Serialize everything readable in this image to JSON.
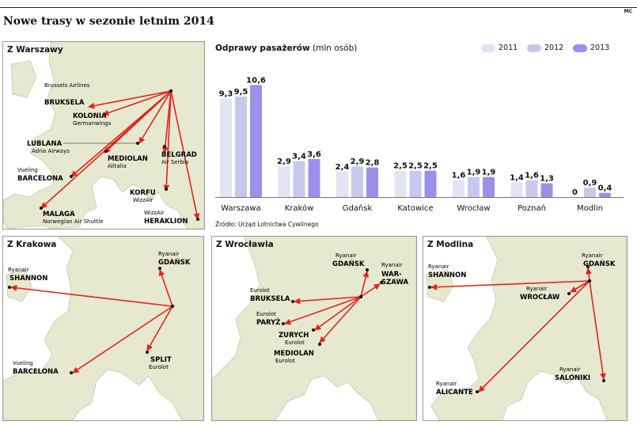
{
  "header": {
    "title": "Nowe trasy w sezonie letnim 2014",
    "corner": "MC"
  },
  "colors": {
    "y2011": "#e3e3f4",
    "y2012": "#c8c8ef",
    "y2013": "#9b8fe8",
    "route": "#e2231a",
    "land": "#e6e8cf",
    "sea": "#ffffff"
  },
  "chart_data": {
    "type": "bar",
    "title": "Odprawy pasażerów",
    "unit": "(mln osób)",
    "categories": [
      "Warszawa",
      "Kraków",
      "Gdańsk",
      "Katowice",
      "Wrocław",
      "Poznań",
      "Modlin"
    ],
    "series": [
      {
        "name": "2011",
        "values": [
          9.3,
          2.9,
          2.4,
          2.5,
          1.6,
          1.4,
          0
        ]
      },
      {
        "name": "2012",
        "values": [
          9.5,
          3.4,
          2.9,
          2.5,
          1.9,
          1.6,
          0.9
        ]
      },
      {
        "name": "2013",
        "values": [
          10.6,
          3.6,
          2.8,
          2.5,
          1.9,
          1.3,
          0.4
        ]
      }
    ],
    "value_labels": [
      [
        "9,3",
        "9,5",
        "10,6"
      ],
      [
        "2,9",
        "3,4",
        "3,6"
      ],
      [
        "2,4",
        "2,9",
        "2,8"
      ],
      [
        "2,5",
        "2,5",
        "2,5"
      ],
      [
        "1,6",
        "1,9",
        "1,9"
      ],
      [
        "1,4",
        "1,6",
        "1,3"
      ],
      [
        "0",
        "0,9",
        "0,4"
      ]
    ],
    "ylim": [
      0,
      11
    ],
    "grid": false,
    "legend": "top-right"
  },
  "source": "Źródło: Urząd Lotnictwa Cywilnego",
  "maps": {
    "warszawa": {
      "title": "Z Warszawy",
      "labels": [
        {
          "city": "BRUKSELA",
          "airline": "Brussels Airlines"
        },
        {
          "city": "KOLONIA",
          "airline": "Germanwings"
        },
        {
          "city": "LUBLANA",
          "airline": "Adria Airways"
        },
        {
          "city": "MEDIOLAN",
          "airline": "Alitalia"
        },
        {
          "city": "BELGRAD",
          "airline": "Air Serbia"
        },
        {
          "city": "BARCELONA",
          "airline": "Vueling"
        },
        {
          "city": "KORFU",
          "airline": "WizzAir"
        },
        {
          "city": "MALAGA",
          "airline": "Norwegian Air Shuttle"
        },
        {
          "city": "HERAKLION",
          "airline": "WizzAir"
        }
      ]
    },
    "krakow": {
      "title": "Z Krakowa",
      "labels": [
        {
          "city": "SHANNON",
          "airline": "Ryanair"
        },
        {
          "city": "GDAŃSK",
          "airline": "Ryanair"
        },
        {
          "city": "SPLIT",
          "airline": "Eurolot"
        },
        {
          "city": "BARCELONA",
          "airline": "Vueling"
        }
      ]
    },
    "wroclaw": {
      "title": "Z Wrocławia",
      "labels": [
        {
          "city": "GDAŃSK",
          "airline": "Ryanair"
        },
        {
          "city": "WAR-",
          "city2": "SZAWA",
          "airline": "Ryanair"
        },
        {
          "city": "BRUKSELA",
          "airline": "Eurolot"
        },
        {
          "city": "PARYŻ",
          "airline": "Eurolot"
        },
        {
          "city": "ZURYCH",
          "airline": "Eurolot"
        },
        {
          "city": "MEDIOLAN",
          "airline": "Eurolot"
        }
      ]
    },
    "modlin": {
      "title": "Z Modlina",
      "labels": [
        {
          "city": "SHANNON",
          "airline": "Ryanair"
        },
        {
          "city": "GDAŃSK",
          "airline": "Ryanair"
        },
        {
          "city": "WROCŁAW",
          "airline": "Ryanair"
        },
        {
          "city": "SALONIKI",
          "airline": "Ryanair"
        },
        {
          "city": "ALICANTE",
          "airline": "Ryanair"
        }
      ]
    }
  }
}
